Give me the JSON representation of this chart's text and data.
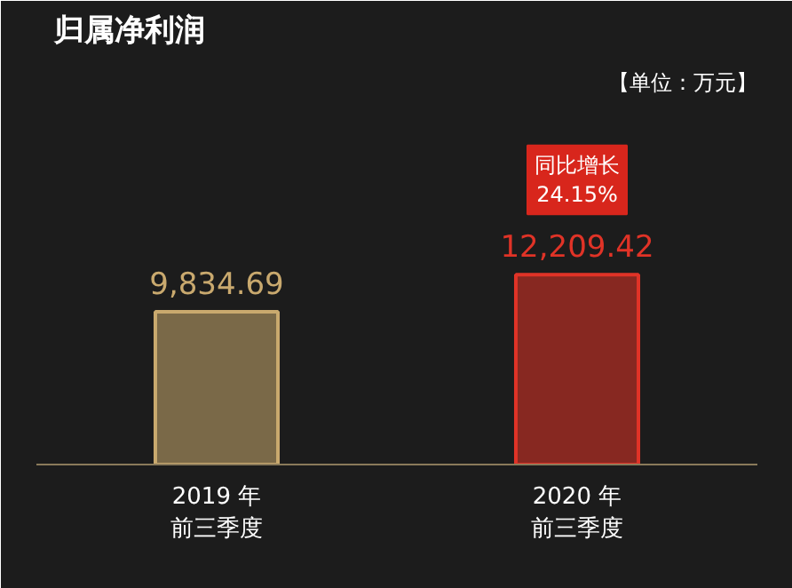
{
  "chart_data": {
    "type": "bar",
    "title": "归属净利润",
    "categories": [
      "2019 年前三季度",
      "2020 年前三季度"
    ],
    "values": [
      9834.69,
      12209.42
    ],
    "colors": [
      "#c9a96e",
      "#e03327"
    ],
    "value_labels": [
      "9,834.69",
      "12,209.42"
    ],
    "annotations": [
      "【单位：万元】",
      "同比增长\n24.15%"
    ]
  }
}
